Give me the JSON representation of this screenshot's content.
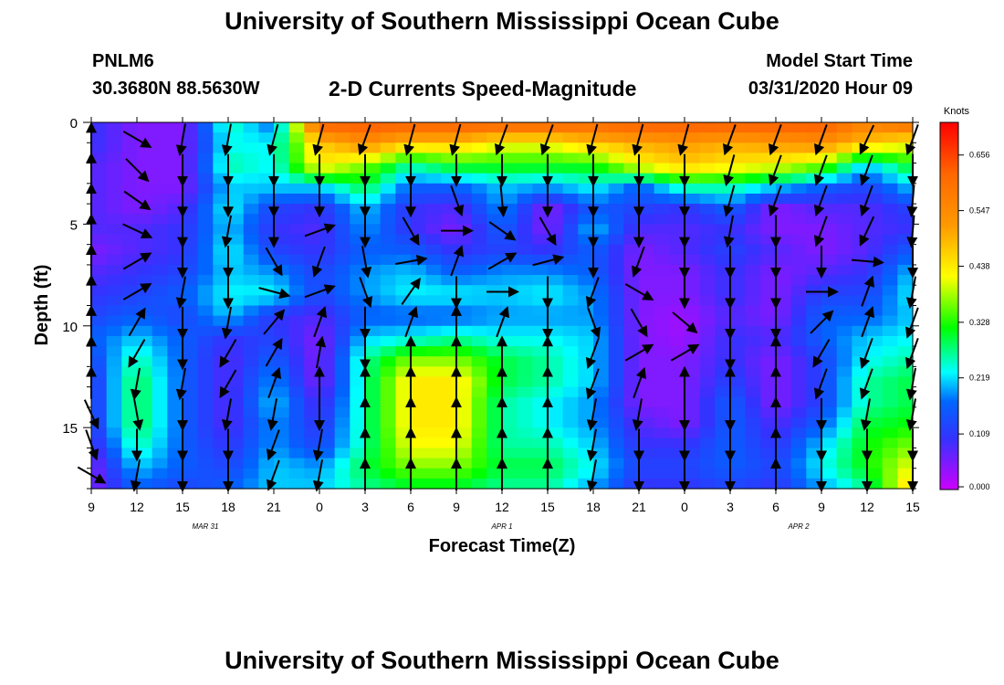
{
  "header": {
    "title": "University of Southern Mississippi Ocean Cube",
    "station": "PNLM6",
    "coords": "30.3680N 88.5630W",
    "subtitle": "2-D Currents Speed-Magnitude",
    "model_start_label": "Model Start Time",
    "model_start_value": "03/31/2020 Hour 09"
  },
  "footer": {
    "title": "University of Southern Mississippi Ocean Cube"
  },
  "chart_data": {
    "type": "heatmap",
    "xlabel": "Forecast Time(Z)",
    "ylabel": "Depth (ft)",
    "x_tick_labels": [
      "9",
      "12",
      "15",
      "18",
      "21",
      "0",
      "3",
      "6",
      "9",
      "12",
      "15",
      "18",
      "21",
      "0",
      "3",
      "6",
      "9",
      "12",
      "15"
    ],
    "y_tick_labels": [
      "0",
      "5",
      "10",
      "15"
    ],
    "y_tick_values": [
      0,
      5,
      10,
      15
    ],
    "ylim": [
      0,
      18
    ],
    "y_inverted": true,
    "date_labels": [
      {
        "text": "MAR 31",
        "tick_index": 2.5
      },
      {
        "text": "APR 1",
        "tick_index": 9
      },
      {
        "text": "APR 2",
        "tick_index": 15.5
      }
    ],
    "colorbar": {
      "title": "Knots",
      "min": 0.0,
      "max": 0.72,
      "ticks": [
        "0.656",
        "0.547",
        "0.438",
        "0.328",
        "0.219",
        "0.109",
        "0.000"
      ],
      "tick_values": [
        0.656,
        0.547,
        0.438,
        0.328,
        0.219,
        0.109,
        0.0
      ]
    },
    "speed_grid_knots": [
      [
        0.1,
        0.05,
        0.05,
        0.25,
        0.15,
        0.62,
        0.62,
        0.62,
        0.62,
        0.62,
        0.62,
        0.6,
        0.62,
        0.62,
        0.62,
        0.62,
        0.62,
        0.55,
        0.6
      ],
      [
        0.1,
        0.05,
        0.05,
        0.22,
        0.22,
        0.45,
        0.52,
        0.45,
        0.45,
        0.4,
        0.4,
        0.45,
        0.48,
        0.5,
        0.48,
        0.5,
        0.52,
        0.45,
        0.4
      ],
      [
        0.08,
        0.05,
        0.05,
        0.25,
        0.22,
        0.42,
        0.35,
        0.25,
        0.3,
        0.3,
        0.3,
        0.3,
        0.4,
        0.45,
        0.42,
        0.4,
        0.35,
        0.2,
        0.3
      ],
      [
        0.08,
        0.05,
        0.05,
        0.2,
        0.2,
        0.2,
        0.28,
        0.15,
        0.15,
        0.2,
        0.18,
        0.22,
        0.15,
        0.25,
        0.25,
        0.2,
        0.15,
        0.12,
        0.2
      ],
      [
        0.08,
        0.05,
        0.08,
        0.22,
        0.12,
        0.1,
        0.2,
        0.1,
        0.08,
        0.18,
        0.05,
        0.15,
        0.12,
        0.1,
        0.15,
        0.05,
        0.08,
        0.08,
        0.12
      ],
      [
        0.08,
        0.08,
        0.1,
        0.2,
        0.1,
        0.08,
        0.18,
        0.1,
        0.05,
        0.15,
        0.05,
        0.2,
        0.08,
        0.08,
        0.1,
        0.05,
        0.05,
        0.08,
        0.1
      ],
      [
        0.05,
        0.08,
        0.1,
        0.22,
        0.12,
        0.1,
        0.15,
        0.15,
        0.1,
        0.12,
        0.1,
        0.15,
        0.05,
        0.08,
        0.12,
        0.08,
        0.05,
        0.08,
        0.15
      ],
      [
        0.08,
        0.1,
        0.12,
        0.2,
        0.18,
        0.12,
        0.18,
        0.2,
        0.15,
        0.18,
        0.18,
        0.15,
        0.05,
        0.05,
        0.1,
        0.05,
        0.08,
        0.1,
        0.2
      ],
      [
        0.1,
        0.12,
        0.15,
        0.22,
        0.22,
        0.12,
        0.18,
        0.22,
        0.22,
        0.2,
        0.22,
        0.18,
        0.05,
        0.05,
        0.1,
        0.05,
        0.12,
        0.12,
        0.22
      ],
      [
        0.12,
        0.15,
        0.12,
        0.2,
        0.1,
        0.08,
        0.15,
        0.15,
        0.15,
        0.18,
        0.18,
        0.18,
        0.05,
        0.03,
        0.08,
        0.05,
        0.15,
        0.15,
        0.2
      ],
      [
        0.15,
        0.2,
        0.15,
        0.1,
        0.12,
        0.05,
        0.2,
        0.22,
        0.25,
        0.22,
        0.22,
        0.2,
        0.05,
        0.03,
        0.1,
        0.08,
        0.15,
        0.2,
        0.22
      ],
      [
        0.12,
        0.25,
        0.15,
        0.08,
        0.15,
        0.05,
        0.25,
        0.35,
        0.35,
        0.28,
        0.25,
        0.2,
        0.05,
        0.05,
        0.1,
        0.05,
        0.12,
        0.22,
        0.25
      ],
      [
        0.1,
        0.28,
        0.15,
        0.08,
        0.18,
        0.05,
        0.25,
        0.42,
        0.42,
        0.28,
        0.25,
        0.2,
        0.05,
        0.05,
        0.12,
        0.05,
        0.12,
        0.25,
        0.28
      ],
      [
        0.1,
        0.28,
        0.15,
        0.08,
        0.2,
        0.08,
        0.25,
        0.42,
        0.42,
        0.25,
        0.22,
        0.18,
        0.05,
        0.05,
        0.15,
        0.05,
        0.12,
        0.25,
        0.28
      ],
      [
        0.1,
        0.28,
        0.15,
        0.08,
        0.18,
        0.1,
        0.25,
        0.42,
        0.42,
        0.25,
        0.22,
        0.18,
        0.08,
        0.05,
        0.15,
        0.08,
        0.15,
        0.28,
        0.3
      ],
      [
        0.08,
        0.25,
        0.15,
        0.1,
        0.18,
        0.12,
        0.25,
        0.4,
        0.4,
        0.25,
        0.25,
        0.2,
        0.1,
        0.1,
        0.15,
        0.1,
        0.2,
        0.3,
        0.35
      ],
      [
        0.05,
        0.2,
        0.15,
        0.12,
        0.2,
        0.18,
        0.28,
        0.35,
        0.35,
        0.28,
        0.28,
        0.22,
        0.12,
        0.12,
        0.15,
        0.12,
        0.22,
        0.3,
        0.4
      ],
      [
        0.05,
        0.15,
        0.12,
        0.15,
        0.2,
        0.2,
        0.25,
        0.28,
        0.28,
        0.25,
        0.25,
        0.18,
        0.1,
        0.1,
        0.12,
        0.1,
        0.18,
        0.25,
        0.45
      ]
    ],
    "arrow_direction_deg": [
      [
        0,
        120,
        190,
        190,
        195,
        195,
        200,
        195,
        195,
        200,
        200,
        195,
        195,
        195,
        200,
        200,
        200,
        205,
        200
      ],
      [
        0,
        135,
        180,
        180,
        180,
        180,
        180,
        180,
        180,
        180,
        180,
        180,
        180,
        180,
        195,
        200,
        200,
        200,
        180
      ],
      [
        0,
        125,
        180,
        180,
        180,
        180,
        180,
        180,
        160,
        175,
        180,
        180,
        180,
        180,
        195,
        200,
        200,
        200,
        185
      ],
      [
        0,
        115,
        180,
        190,
        180,
        70,
        180,
        150,
        90,
        125,
        150,
        180,
        180,
        180,
        190,
        180,
        200,
        205,
        185
      ],
      [
        0,
        60,
        180,
        180,
        150,
        200,
        170,
        80,
        20,
        60,
        75,
        180,
        200,
        180,
        180,
        180,
        180,
        95,
        180
      ],
      [
        0,
        60,
        190,
        180,
        105,
        70,
        160,
        35,
        180,
        90,
        180,
        200,
        120,
        180,
        180,
        180,
        90,
        20,
        190
      ],
      [
        0,
        30,
        180,
        190,
        40,
        20,
        180,
        20,
        0,
        20,
        180,
        160,
        150,
        130,
        180,
        180,
        45,
        20,
        200
      ],
      [
        0,
        210,
        180,
        210,
        30,
        10,
        180,
        0,
        0,
        0,
        0,
        200,
        60,
        60,
        180,
        0,
        210,
        200,
        200
      ],
      [
        0,
        190,
        190,
        210,
        20,
        0,
        0,
        0,
        0,
        0,
        0,
        200,
        20,
        0,
        0,
        0,
        200,
        200,
        190
      ],
      [
        155,
        170,
        180,
        190,
        190,
        180,
        0,
        0,
        0,
        0,
        0,
        190,
        190,
        180,
        180,
        0,
        180,
        190,
        190
      ],
      [
        160,
        180,
        180,
        180,
        200,
        190,
        0,
        0,
        0,
        0,
        0,
        190,
        180,
        180,
        180,
        0,
        180,
        180,
        180
      ],
      [
        120,
        190,
        180,
        180,
        200,
        190,
        0,
        0,
        0,
        0,
        0,
        190,
        180,
        180,
        180,
        0,
        180,
        180,
        180
      ]
    ]
  }
}
